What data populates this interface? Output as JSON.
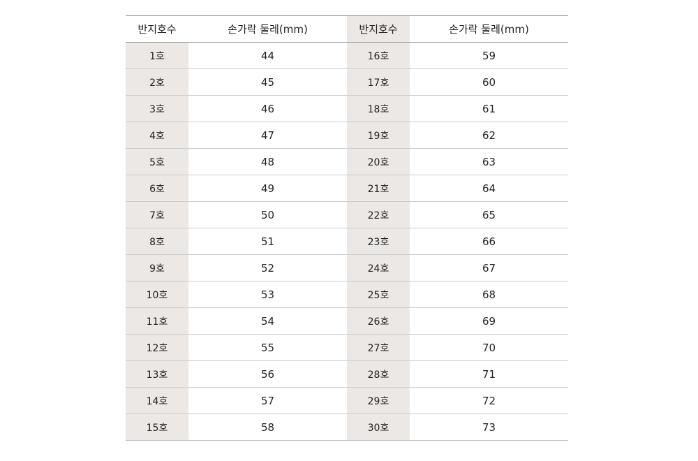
{
  "table": {
    "headers": [
      "반지호수",
      "손가락 둘레(mm)",
      "반지호수",
      "손가락 둘레(mm)"
    ],
    "rows": [
      [
        "1호",
        44,
        "16호",
        59
      ],
      [
        "2호",
        45,
        "17호",
        60
      ],
      [
        "3호",
        46,
        "18호",
        61
      ],
      [
        "4호",
        47,
        "19호",
        62
      ],
      [
        "5호",
        48,
        "20호",
        63
      ],
      [
        "6호",
        49,
        "21호",
        64
      ],
      [
        "7호",
        50,
        "22호",
        65
      ],
      [
        "8호",
        51,
        "23호",
        66
      ],
      [
        "9호",
        52,
        "24호",
        67
      ],
      [
        "10호",
        53,
        "25호",
        68
      ],
      [
        "11호",
        54,
        "26호",
        69
      ],
      [
        "12호",
        55,
        "27호",
        70
      ],
      [
        "13호",
        56,
        "28호",
        71
      ],
      [
        "14호",
        57,
        "29호",
        72
      ],
      [
        "15호",
        58,
        "30호",
        73
      ]
    ]
  }
}
